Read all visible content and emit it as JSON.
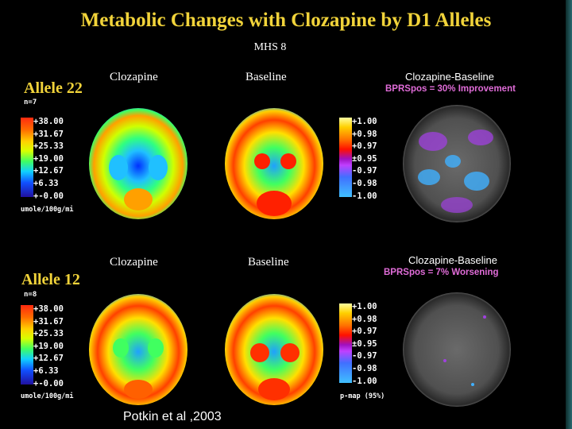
{
  "title": "Metabolic Changes with Clozapine by D1 Alleles",
  "subtitle": "MHS 8",
  "column_labels": {
    "left": "Clozapine",
    "middle": "Baseline",
    "right": "Clozapine-Baseline"
  },
  "rows": [
    {
      "allele": "Allele 22",
      "n": "n=7",
      "bprs": "BPRSpos = 30% Improvement",
      "scale_ticks": [
        "+38.00",
        "+31.67",
        "+25.33",
        "+19.00",
        "+12.67",
        "+6.33",
        "+-0.00"
      ],
      "scale_unit": "umole/100g/mi",
      "pmap_ticks": [
        "+1.00",
        "+0.98",
        "+0.97",
        "±0.95",
        "-0.97",
        "-0.98",
        "-1.00"
      ]
    },
    {
      "allele": "Allele 12",
      "n": "n=8",
      "bprs": "BPRSpos = 7% Worsening",
      "scale_ticks": [
        "+38.00",
        "+31.67",
        "+25.33",
        "+19.00",
        "+12.67",
        "+6.33",
        "+-0.00"
      ],
      "scale_unit": "umole/100g/mi",
      "pmap_ticks": [
        "+1.00",
        "+0.98",
        "+0.97",
        "±0.95",
        "-0.97",
        "-0.98",
        "-1.00"
      ],
      "pmap_label": "p-map (95%)"
    }
  ],
  "citation": "Potkin et al ,2003",
  "colors": {
    "title": "#f1d33a",
    "bprs": "#e06cd8",
    "background": "#000000"
  }
}
